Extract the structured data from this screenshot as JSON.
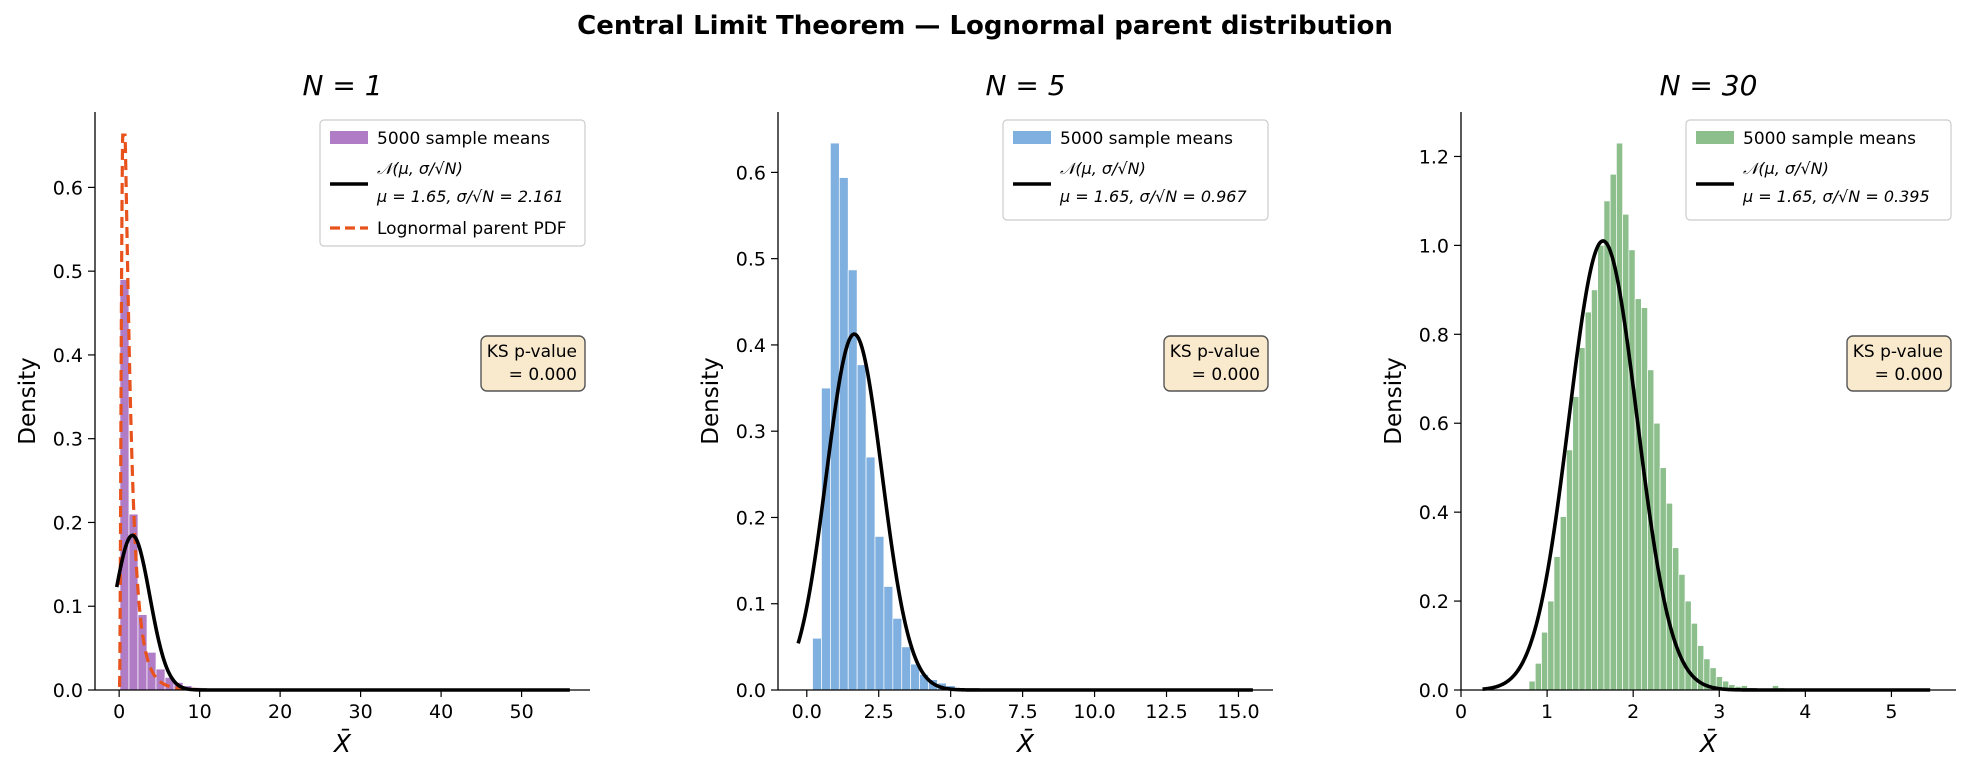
{
  "figure": {
    "suptitle": "Central Limit Theorem — Lognormal parent distribution"
  },
  "chart_data": [
    {
      "type": "bar",
      "title": "N = 1",
      "xlabel": "X̄",
      "ylabel": "Density",
      "xlim": [
        -3.0,
        58.5
      ],
      "ylim": [
        0,
        0.69
      ],
      "xticks": [
        0,
        10,
        20,
        30,
        40,
        50
      ],
      "xtick_labels": [
        "0",
        "10",
        "20",
        "30",
        "40",
        "50"
      ],
      "yticks": [
        0.0,
        0.1,
        0.2,
        0.3,
        0.4,
        0.5,
        0.6
      ],
      "ytick_labels": [
        "0.0",
        "0.1",
        "0.2",
        "0.3",
        "0.4",
        "0.5",
        "0.6"
      ],
      "legend_position": "top-right",
      "legend": [
        {
          "kind": "patch",
          "color": "#b07cc6",
          "label": "5000 sample means"
        },
        {
          "kind": "line",
          "color": "#000000",
          "label": "𝒩(μ, σ/√N)",
          "sublabel": "μ = 1.65, σ/√N = 2.161"
        },
        {
          "kind": "dash",
          "color": "#e8531d",
          "label": "Lognormal parent PDF"
        }
      ],
      "annotation": {
        "label": "KS p-value",
        "value": "= 0.000"
      },
      "histogram": {
        "color": "#b07cc6",
        "bin_start": 0.1,
        "bin_width": 1.12,
        "values": [
          0.49,
          0.21,
          0.09,
          0.045,
          0.025,
          0.015,
          0.009,
          0.005,
          0.003,
          0.002,
          0.001,
          0.0006,
          0.0004,
          0.0003,
          0.0002
        ]
      },
      "normal": {
        "mu": 1.65,
        "sigma": 2.161,
        "x_range": [
          -0.3,
          56
        ]
      },
      "parent_pdf": {
        "color": "#e8531d",
        "mu": 0.0,
        "sigma": 0.75,
        "x_range": [
          0.05,
          10
        ]
      }
    },
    {
      "type": "bar",
      "title": "N = 5",
      "xlabel": "X̄",
      "ylabel": "Density",
      "xlim": [
        -1.0,
        16.2
      ],
      "ylim": [
        0,
        0.67
      ],
      "xticks": [
        0,
        2.5,
        5,
        7.5,
        10,
        12.5,
        15
      ],
      "xtick_labels": [
        "0.0",
        "2.5",
        "5.0",
        "7.5",
        "10.0",
        "12.5",
        "15.0"
      ],
      "yticks": [
        0.0,
        0.1,
        0.2,
        0.3,
        0.4,
        0.5,
        0.6
      ],
      "ytick_labels": [
        "0.0",
        "0.1",
        "0.2",
        "0.3",
        "0.4",
        "0.5",
        "0.6"
      ],
      "legend_position": "top-right",
      "legend": [
        {
          "kind": "patch",
          "color": "#7fb0e0",
          "label": "5000 sample means"
        },
        {
          "kind": "line",
          "color": "#000000",
          "label": "𝒩(μ, σ/√N)",
          "sublabel": "μ = 1.65, σ/√N = 0.967"
        }
      ],
      "annotation": {
        "label": "KS p-value",
        "value": "= 0.000"
      },
      "histogram": {
        "color": "#7fb0e0",
        "bin_start": 0.2,
        "bin_width": 0.31,
        "values": [
          0.06,
          0.35,
          0.634,
          0.594,
          0.487,
          0.377,
          0.27,
          0.178,
          0.12,
          0.083,
          0.05,
          0.03,
          0.018,
          0.012,
          0.008,
          0.005
        ]
      },
      "normal": {
        "mu": 1.65,
        "sigma": 0.967,
        "x_range": [
          -0.3,
          15.5
        ]
      }
    },
    {
      "type": "bar",
      "title": "N = 30",
      "xlabel": "X̄",
      "ylabel": "Density",
      "xlim": [
        0,
        5.75
      ],
      "ylim": [
        0,
        1.3
      ],
      "xticks": [
        0,
        1,
        2,
        3,
        4,
        5
      ],
      "xtick_labels": [
        "0",
        "1",
        "2",
        "3",
        "4",
        "5"
      ],
      "yticks": [
        0.0,
        0.2,
        0.4,
        0.6,
        0.8,
        1.0,
        1.2
      ],
      "ytick_labels": [
        "0.0",
        "0.2",
        "0.4",
        "0.6",
        "0.8",
        "1.0",
        "1.2"
      ],
      "legend_position": "top-right",
      "legend": [
        {
          "kind": "patch",
          "color": "#8cbf8c",
          "label": "5000 sample means"
        },
        {
          "kind": "line",
          "color": "#000000",
          "label": "𝒩(μ, σ/√N)",
          "sublabel": "μ = 1.65, σ/√N = 0.395"
        }
      ],
      "annotation": {
        "label": "KS p-value",
        "value": "= 0.000"
      },
      "histogram": {
        "color": "#8cbf8c",
        "bin_start": 0.79,
        "bin_width": 0.0725,
        "values": [
          0.02,
          0.06,
          0.13,
          0.2,
          0.3,
          0.39,
          0.54,
          0.66,
          0.77,
          0.85,
          0.9,
          1.0,
          1.1,
          1.16,
          1.23,
          1.07,
          0.99,
          0.88,
          0.86,
          0.72,
          0.6,
          0.5,
          0.42,
          0.32,
          0.26,
          0.2,
          0.15,
          0.1,
          0.07,
          0.05,
          0.03,
          0.02,
          0.012,
          0.008,
          0.01,
          0.005,
          0.004,
          0.004,
          0.003,
          0.01,
          0.005
        ]
      },
      "normal": {
        "mu": 1.65,
        "sigma": 0.395,
        "x_range": [
          0.25,
          5.45
        ]
      }
    }
  ]
}
